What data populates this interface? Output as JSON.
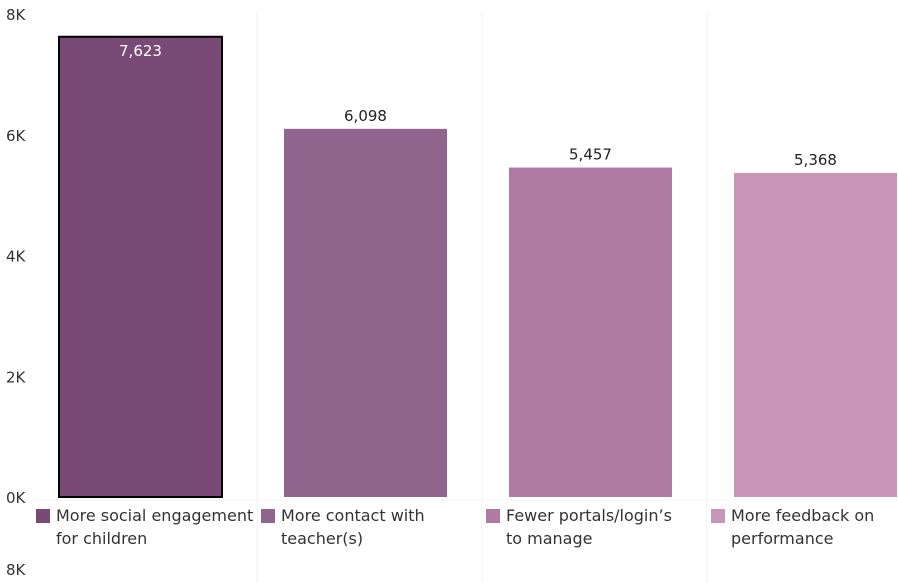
{
  "chart_data": {
    "type": "bar",
    "categories": [
      [
        "More social engagement",
        "for children"
      ],
      [
        "More contact with",
        "teacher(s)"
      ],
      [
        "Fewer portals/login’s",
        "to manage"
      ],
      [
        "More feedback on",
        "performance"
      ]
    ],
    "values": [
      7623,
      6098,
      5457,
      5368
    ],
    "value_labels": [
      "7,623",
      "6,098",
      "5,457",
      "5,368"
    ],
    "colors": [
      "#7a4a76",
      "#8f648d",
      "#b07ba2",
      "#c995b6"
    ],
    "highlighted_index": 0,
    "y_ticks": [
      {
        "value": 0,
        "label": "0K"
      },
      {
        "value": 2000,
        "label": "2K"
      },
      {
        "value": 4000,
        "label": "4K"
      },
      {
        "value": 6000,
        "label": "6K"
      },
      {
        "value": 8000,
        "label": "8K"
      }
    ],
    "ylim": [
      0,
      8000
    ],
    "repeated_axis_label": "8K",
    "legend_position": "bottom",
    "grid": false,
    "title": "",
    "xlabel": "",
    "ylabel": ""
  }
}
